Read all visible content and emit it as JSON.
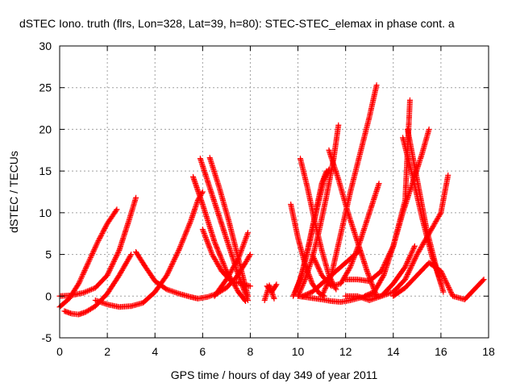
{
  "chart_data": {
    "type": "scatter",
    "title": "dSTEC Iono. truth (flrs, Lon=328, Lat=39, h=80): STEC-STEC_elemax in phase cont. a",
    "xlabel": "GPS time / hours of day 349 of year 2011",
    "ylabel": "dSTEC  / TECUs",
    "xlim": [
      0,
      18
    ],
    "ylim": [
      -5,
      30
    ],
    "xticks": [
      0,
      2,
      4,
      6,
      8,
      10,
      12,
      14,
      16,
      18
    ],
    "yticks": [
      -5,
      0,
      5,
      10,
      15,
      20,
      25,
      30
    ],
    "grid": true,
    "marker": "+",
    "color": "#ff0000",
    "series": [
      {
        "x": [
          0.0,
          0.4,
          0.8,
          1.2,
          1.6,
          2.0,
          2.4
        ],
        "y": [
          -1.3,
          -0.3,
          1.5,
          4.0,
          6.5,
          8.7,
          10.4
        ]
      },
      {
        "x": [
          0.0,
          0.5,
          1.0,
          1.5,
          2.0,
          2.5,
          2.9,
          3.2
        ],
        "y": [
          0.0,
          0.1,
          0.4,
          1.0,
          2.5,
          5.5,
          9.0,
          11.8
        ]
      },
      {
        "x": [
          0.2,
          0.5,
          0.8,
          1.1,
          1.5,
          2.0,
          2.5,
          3.0
        ],
        "y": [
          -1.8,
          -2.1,
          -2.2,
          -1.9,
          -1.2,
          0.3,
          2.5,
          5.0
        ]
      },
      {
        "x": [
          1.5,
          2.0,
          2.5,
          3.0,
          3.5,
          4.0,
          4.5,
          5.0,
          5.5,
          5.8,
          6.0
        ],
        "y": [
          -0.5,
          -1.0,
          -1.3,
          -1.2,
          -0.8,
          0.5,
          2.5,
          5.5,
          9.0,
          11.5,
          12.5
        ]
      },
      {
        "x": [
          3.2,
          3.6,
          4.0,
          4.5,
          5.0,
          5.5,
          5.8,
          6.2,
          6.6,
          7.0,
          7.4,
          7.8,
          8.0
        ],
        "y": [
          5.3,
          3.5,
          1.8,
          0.8,
          0.3,
          -0.1,
          -0.3,
          -0.1,
          0.3,
          1.0,
          2.2,
          4.0,
          5.0
        ]
      },
      {
        "x": [
          5.6,
          6.0,
          6.5,
          7.0,
          7.5,
          7.8
        ],
        "y": [
          14.3,
          11.0,
          6.5,
          3.0,
          0.5,
          -0.6
        ]
      },
      {
        "x": [
          5.9,
          6.3,
          6.7,
          7.1,
          7.5,
          7.9
        ],
        "y": [
          16.5,
          13.0,
          9.5,
          6.0,
          2.5,
          -0.5
        ]
      },
      {
        "x": [
          6.3,
          6.7,
          7.1,
          7.5,
          7.9
        ],
        "y": [
          16.6,
          13.0,
          9.0,
          4.5,
          0.0
        ]
      },
      {
        "x": [
          6.0,
          6.4,
          6.8,
          7.2,
          7.6,
          8.0
        ],
        "y": [
          8.0,
          5.0,
          3.0,
          1.8,
          1.5,
          1.2
        ]
      },
      {
        "x": [
          6.5,
          7.0,
          7.5,
          7.9
        ],
        "y": [
          0.0,
          2.0,
          4.5,
          7.6
        ]
      },
      {
        "x": [
          8.6,
          8.8,
          9.0
        ],
        "y": [
          -0.5,
          1.3,
          -0.3
        ]
      },
      {
        "x": [
          8.7,
          8.9,
          9.1
        ],
        "y": [
          1.2,
          0.5,
          1.4
        ]
      },
      {
        "x": [
          9.8,
          10.1,
          10.4,
          10.7,
          11.0,
          11.2
        ],
        "y": [
          0.0,
          2.0,
          5.5,
          9.5,
          13.5,
          15.0
        ]
      },
      {
        "x": [
          9.9,
          10.2,
          10.5,
          10.8,
          11.1,
          11.3
        ],
        "y": [
          0.5,
          3.0,
          6.5,
          10.5,
          14.0,
          15.2
        ]
      },
      {
        "x": [
          10.0,
          10.3,
          10.6,
          10.9,
          11.2,
          11.5,
          11.7
        ],
        "y": [
          0.0,
          2.0,
          4.5,
          8.0,
          12.0,
          16.5,
          20.5
        ]
      },
      {
        "x": [
          9.7,
          10.0,
          10.3,
          10.6,
          10.9,
          11.1
        ],
        "y": [
          11.0,
          7.0,
          3.8,
          1.5,
          0.3,
          0.0
        ]
      },
      {
        "x": [
          10.1,
          10.4,
          10.7,
          11.0,
          11.3,
          11.6
        ],
        "y": [
          16.5,
          13.0,
          9.0,
          5.5,
          2.5,
          0.8
        ]
      },
      {
        "x": [
          10.6,
          11.0,
          11.4,
          11.8,
          12.2,
          12.6,
          13.0,
          13.4
        ],
        "y": [
          5.0,
          2.5,
          1.2,
          1.5,
          3.5,
          6.5,
          10.0,
          13.5
        ]
      },
      {
        "x": [
          10.2,
          10.6,
          11.0,
          11.4,
          11.8,
          12.2,
          12.6
        ],
        "y": [
          0.0,
          0.5,
          1.5,
          2.5,
          3.5,
          4.5,
          5.5
        ]
      },
      {
        "x": [
          10.0,
          10.5,
          11.0,
          11.4,
          11.8,
          12.2,
          12.6,
          13.0
        ],
        "y": [
          0.0,
          -0.2,
          -0.4,
          -0.6,
          -0.7,
          -0.5,
          -0.2,
          0.0
        ]
      },
      {
        "x": [
          11.0,
          11.4,
          11.8,
          12.2,
          12.6,
          13.0,
          13.3
        ],
        "y": [
          0.0,
          2.5,
          7.5,
          12.5,
          17.0,
          21.5,
          25.3
        ]
      },
      {
        "x": [
          11.3,
          11.7,
          12.1,
          12.5,
          12.9,
          13.3
        ],
        "y": [
          17.5,
          14.0,
          10.0,
          6.5,
          3.0,
          0.0
        ]
      },
      {
        "x": [
          12.0,
          12.5,
          13.0,
          13.5,
          14.0,
          14.5,
          14.7
        ],
        "y": [
          2.0,
          2.0,
          1.8,
          3.0,
          6.0,
          11.5,
          23.5
        ]
      },
      {
        "x": [
          12.8,
          13.2,
          13.6,
          14.0,
          14.4,
          14.8,
          15.2,
          15.5
        ],
        "y": [
          0.0,
          0.5,
          2.5,
          6.0,
          10.0,
          13.5,
          17.0,
          20.0
        ]
      },
      {
        "x": [
          14.4,
          14.8,
          15.2,
          15.6,
          16.0
        ],
        "y": [
          19.0,
          14.5,
          9.5,
          5.0,
          1.5
        ]
      },
      {
        "x": [
          14.6,
          15.0,
          15.4,
          15.8,
          16.1
        ],
        "y": [
          20.0,
          14.0,
          8.0,
          3.5,
          0.5
        ]
      },
      {
        "x": [
          13.0,
          13.5,
          14.0,
          14.5,
          15.0,
          15.5,
          16.0,
          16.3
        ],
        "y": [
          0.0,
          0.0,
          0.5,
          2.0,
          5.0,
          7.5,
          10.0,
          14.5
        ]
      },
      {
        "x": [
          14.0,
          14.5,
          15.0,
          15.5,
          16.0,
          16.5,
          17.0,
          17.4,
          17.8
        ],
        "y": [
          0.0,
          1.0,
          2.5,
          4.0,
          3.0,
          0.0,
          -0.4,
          0.8,
          2.0
        ]
      },
      {
        "x": [
          12.0,
          12.5,
          13.0,
          13.5,
          14.0,
          14.5,
          14.9
        ],
        "y": [
          0.0,
          0.0,
          -0.5,
          0.0,
          1.5,
          3.5,
          6.0
        ]
      }
    ]
  }
}
